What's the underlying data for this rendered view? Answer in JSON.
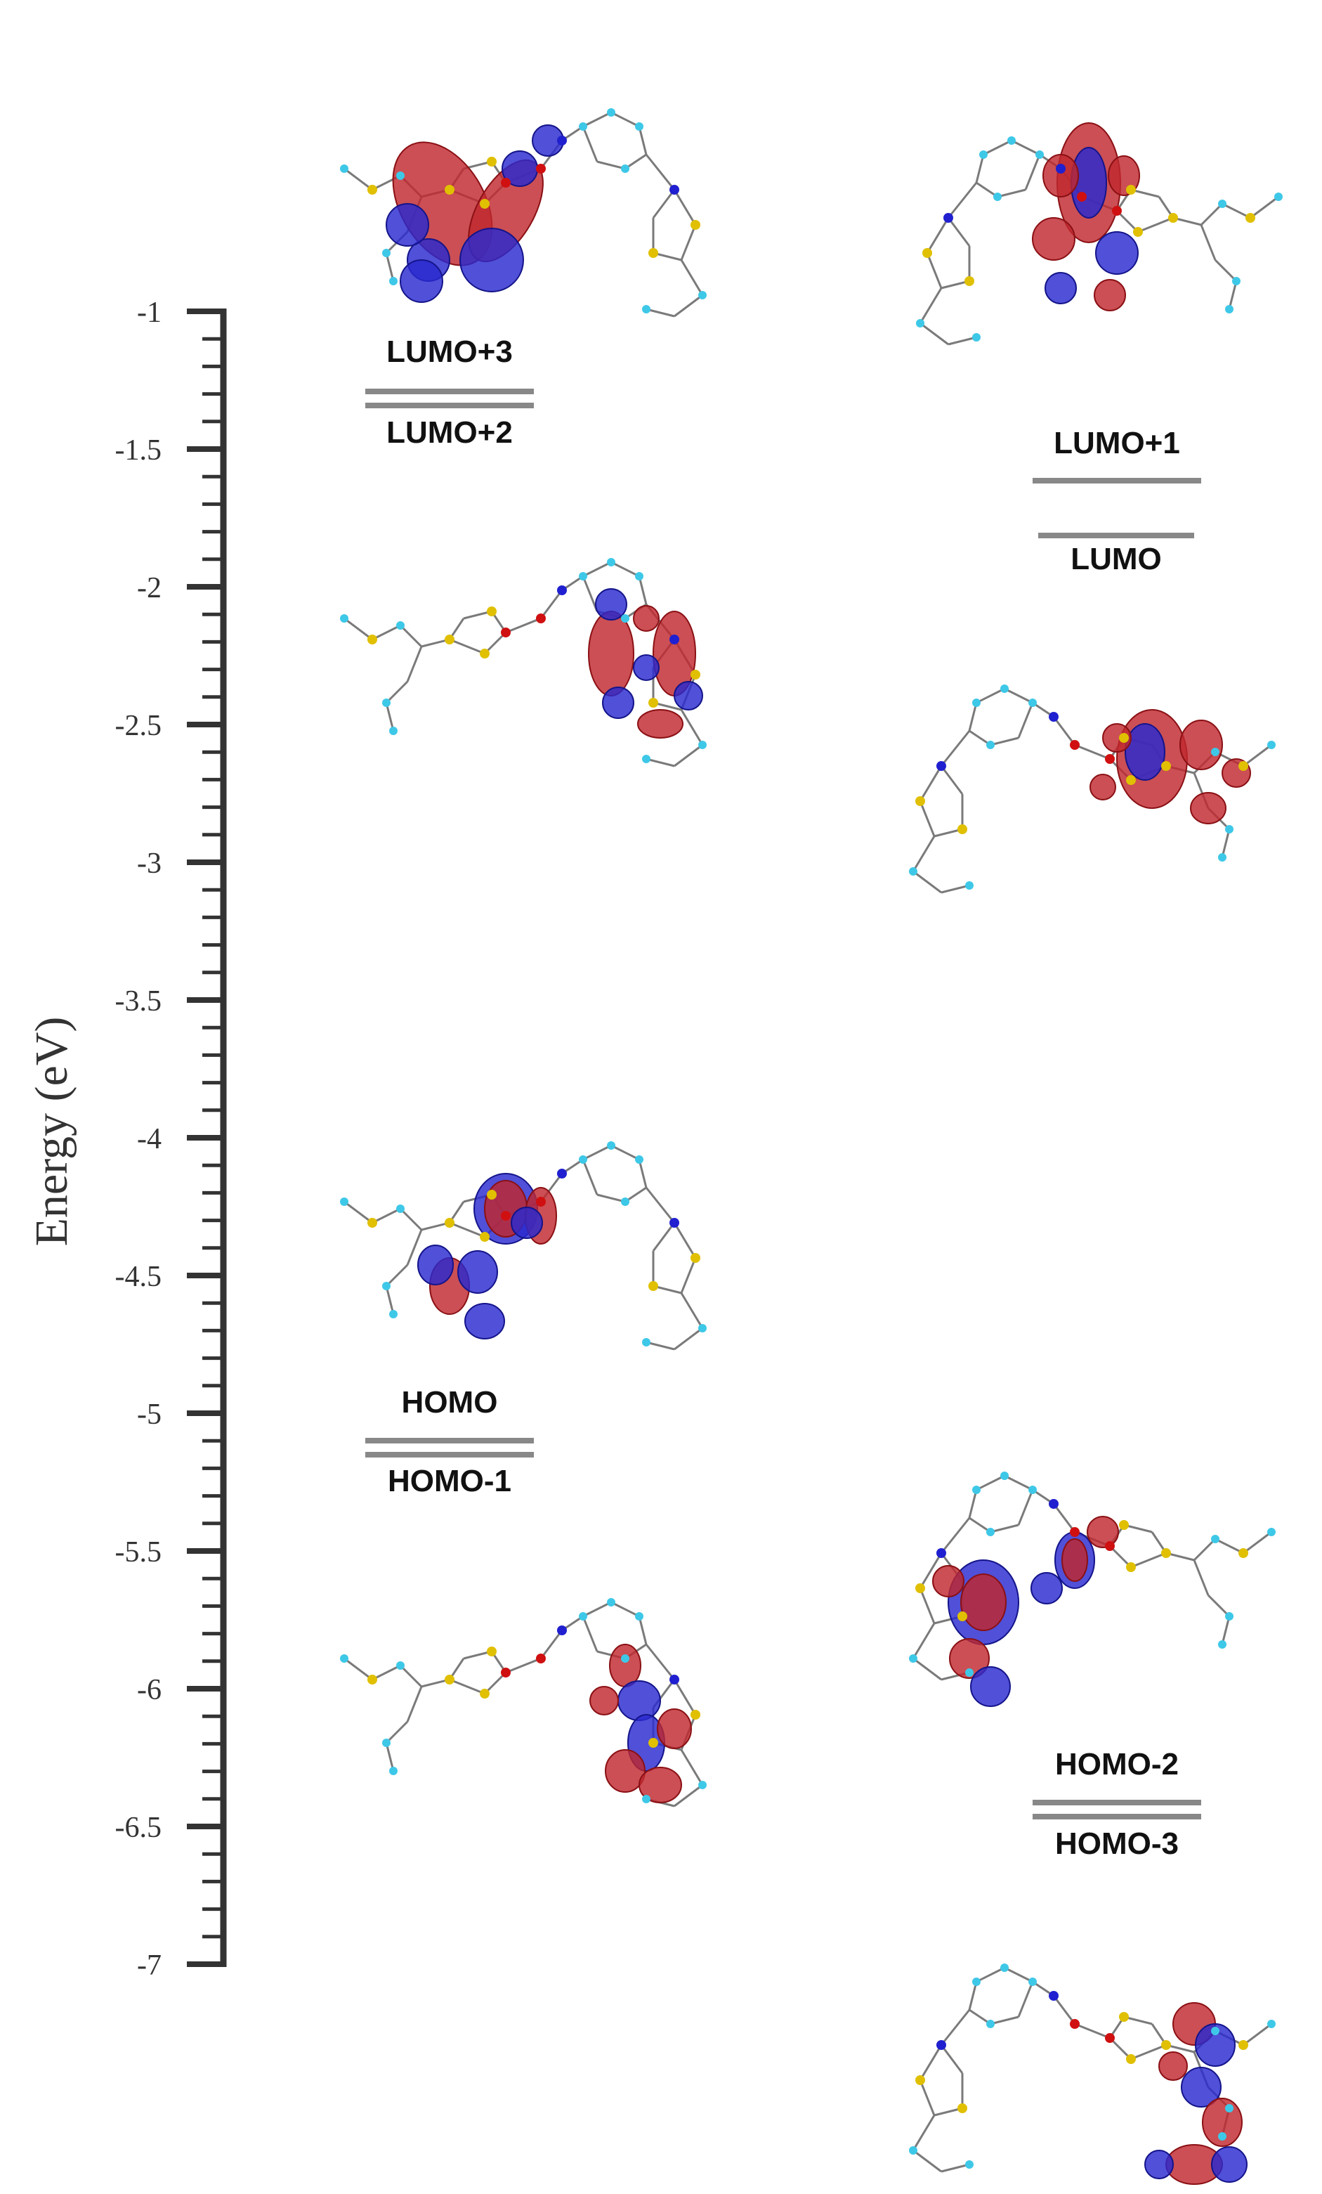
{
  "chart_data": {
    "type": "diagram",
    "ylabel": "Energy (eV)",
    "ylim": [
      -7,
      -1
    ],
    "y_ticks": [
      "-1",
      "-1.5",
      "-2",
      "-2.5",
      "-3",
      "-3.5",
      "-4",
      "-4.5",
      "-5",
      "-5.5",
      "-6",
      "-6.5",
      "-7"
    ],
    "orbitals": [
      {
        "name": "LUMO+3",
        "column": "left",
        "label_position": "above"
      },
      {
        "name": "LUMO+2",
        "column": "left",
        "label_position": "below"
      },
      {
        "name": "LUMO+1",
        "column": "right",
        "label_position": "above"
      },
      {
        "name": "LUMO",
        "column": "right",
        "label_position": "below"
      },
      {
        "name": "HOMO",
        "column": "left",
        "label_position": "above"
      },
      {
        "name": "HOMO-1",
        "column": "left",
        "label_position": "below"
      },
      {
        "name": "HOMO-2",
        "column": "right",
        "label_position": "above"
      },
      {
        "name": "HOMO-3",
        "column": "right",
        "label_position": "below"
      }
    ],
    "colors": {
      "axis": "#333333",
      "level": "#888888",
      "lobe_positive": "#c0282e",
      "lobe_negative": "#2a2ad0"
    }
  }
}
